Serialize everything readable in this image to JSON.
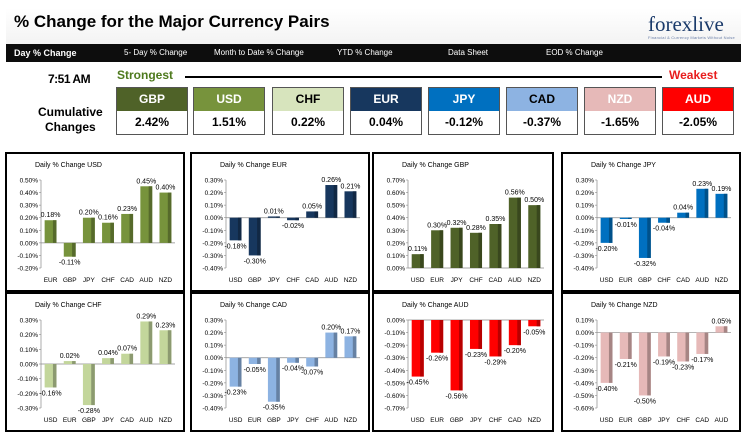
{
  "header": {
    "title": "% Change for the Major Currency Pairs",
    "logo_text": "forexlive",
    "logo_tagline": "Financial & Currency Markets Without Noise"
  },
  "nav": {
    "tabs": [
      {
        "label": "Day % Change",
        "active": true
      },
      {
        "label": "5- Day % Change",
        "active": false
      },
      {
        "label": "Month to Date % Change",
        "active": false
      },
      {
        "label": "YTD % Change",
        "active": false
      },
      {
        "label": "Data Sheet",
        "active": false
      },
      {
        "label": "EOD % Change",
        "active": false
      }
    ]
  },
  "summary": {
    "time": "7:51 AM",
    "strongest_label": "Strongest",
    "weakest_label": "Weakest",
    "cumulative_label_1": "Cumulative",
    "cumulative_label_2": "Changes",
    "currencies": [
      {
        "code": "GBP",
        "value": "2.42%",
        "color": "#4f6228",
        "text_color": "#ffffff"
      },
      {
        "code": "USD",
        "value": "1.51%",
        "color": "#77933c",
        "text_color": "#ffffff"
      },
      {
        "code": "CHF",
        "value": "0.22%",
        "color": "#d7e4bd",
        "text_color": "#000000"
      },
      {
        "code": "EUR",
        "value": "0.04%",
        "color": "#17375e",
        "text_color": "#ffffff"
      },
      {
        "code": "JPY",
        "value": "-0.12%",
        "color": "#0070c0",
        "text_color": "#ffffff"
      },
      {
        "code": "CAD",
        "value": "-0.37%",
        "color": "#8db3e2",
        "text_color": "#000000"
      },
      {
        "code": "NZD",
        "value": "-1.65%",
        "color": "#e6b9b8",
        "text_color": "#ffffff"
      },
      {
        "code": "AUD",
        "value": "-2.05%",
        "color": "#ff0000",
        "text_color": "#ffffff"
      }
    ]
  },
  "chart_data": [
    {
      "type": "bar",
      "title": "Daily % Change USD",
      "color": "#77933c",
      "categories": [
        "EUR",
        "GBP",
        "JPY",
        "CHF",
        "CAD",
        "AUD",
        "NZD"
      ],
      "values": [
        0.18,
        -0.11,
        0.2,
        0.16,
        0.23,
        0.45,
        0.4
      ],
      "labels": [
        "0.18%",
        "-0.11%",
        "0.20%",
        "0.16%",
        "0.23%",
        "0.45%",
        "0.40%"
      ],
      "ylim": [
        -0.2,
        0.5
      ],
      "ytick_labels": [
        "0.50%",
        "0.40%",
        "0.30%",
        "0.20%",
        "0.10%",
        "0.00%",
        "-0.10%",
        "-0.20%"
      ]
    },
    {
      "type": "bar",
      "title": "Daily % Change EUR",
      "color": "#17375e",
      "categories": [
        "USD",
        "GBP",
        "JPY",
        "CHF",
        "CAD",
        "AUD",
        "NZD"
      ],
      "values": [
        -0.18,
        -0.3,
        0.01,
        -0.02,
        0.05,
        0.26,
        0.21
      ],
      "labels": [
        "-0.18%",
        "-0.30%",
        "0.01%",
        "-0.02%",
        "0.05%",
        "0.26%",
        "0.21%"
      ],
      "ylim": [
        -0.4,
        0.3
      ],
      "ytick_labels": [
        "0.30%",
        "0.20%",
        "0.10%",
        "0.00%",
        "-0.10%",
        "-0.20%",
        "-0.30%",
        "-0.40%"
      ]
    },
    {
      "type": "bar",
      "title": "Daily % Change GBP",
      "color": "#4f6228",
      "categories": [
        "USD",
        "EUR",
        "JPY",
        "CHF",
        "CAD",
        "AUD",
        "NZD"
      ],
      "values": [
        0.11,
        0.3,
        0.32,
        0.28,
        0.35,
        0.56,
        0.5
      ],
      "labels": [
        "0.11%",
        "0.30%",
        "0.32%",
        "0.28%",
        "0.35%",
        "0.56%",
        "0.50%"
      ],
      "ylim": [
        0.0,
        0.7
      ],
      "ytick_labels": [
        "0.70%",
        "0.60%",
        "0.50%",
        "0.40%",
        "0.30%",
        "0.20%",
        "0.10%",
        "0.00%"
      ]
    },
    {
      "type": "bar",
      "title": "Daily % Change JPY",
      "color": "#0070c0",
      "categories": [
        "USD",
        "EUR",
        "GBP",
        "CHF",
        "CAD",
        "AUD",
        "NZD"
      ],
      "values": [
        -0.2,
        -0.01,
        -0.32,
        -0.04,
        0.04,
        0.23,
        0.19
      ],
      "labels": [
        "-0.20%",
        "-0.01%",
        "-0.32%",
        "-0.04%",
        "0.04%",
        "0.23%",
        "0.19%"
      ],
      "ylim": [
        -0.4,
        0.3
      ],
      "ytick_labels": [
        "0.30%",
        "0.20%",
        "0.10%",
        "0.00%",
        "-0.10%",
        "-0.20%",
        "-0.30%",
        "-0.40%"
      ]
    },
    {
      "type": "bar",
      "title": "Daily % Change CHF",
      "color": "#c3d69b",
      "categories": [
        "USD",
        "EUR",
        "GBP",
        "JPY",
        "CAD",
        "AUD",
        "NZD"
      ],
      "values": [
        -0.16,
        0.02,
        -0.28,
        0.04,
        0.07,
        0.29,
        0.23
      ],
      "labels": [
        "-0.16%",
        "0.02%",
        "-0.28%",
        "0.04%",
        "0.07%",
        "0.29%",
        "0.23%"
      ],
      "ylim": [
        -0.3,
        0.3
      ],
      "ytick_labels": [
        "0.30%",
        "0.20%",
        "0.10%",
        "0.00%",
        "-0.10%",
        "-0.20%",
        "-0.30%"
      ]
    },
    {
      "type": "bar",
      "title": "Daily % Change CAD",
      "color": "#8db3e2",
      "categories": [
        "USD",
        "EUR",
        "GBP",
        "JPY",
        "CHF",
        "AUD",
        "NZD"
      ],
      "values": [
        -0.23,
        -0.05,
        -0.35,
        -0.04,
        -0.07,
        0.2,
        0.17
      ],
      "labels": [
        "-0.23%",
        "-0.05%",
        "-0.35%",
        "-0.04%",
        "-0.07%",
        "0.20%",
        "0.17%"
      ],
      "ylim": [
        -0.4,
        0.3
      ],
      "ytick_labels": [
        "0.30%",
        "0.20%",
        "0.10%",
        "0.00%",
        "-0.10%",
        "-0.20%",
        "-0.30%",
        "-0.40%"
      ]
    },
    {
      "type": "bar",
      "title": "Daily % Change AUD",
      "color": "#ff0000",
      "categories": [
        "USD",
        "EUR",
        "GBP",
        "JPY",
        "CHF",
        "CAD",
        "NZD"
      ],
      "values": [
        -0.45,
        -0.26,
        -0.56,
        -0.23,
        -0.29,
        -0.2,
        -0.05
      ],
      "labels": [
        "-0.45%",
        "-0.26%",
        "-0.56%",
        "-0.23%",
        "-0.29%",
        "-0.20%",
        "-0.05%"
      ],
      "ylim": [
        -0.7,
        0.0
      ],
      "ytick_labels": [
        "0.00%",
        "-0.10%",
        "-0.20%",
        "-0.30%",
        "-0.40%",
        "-0.50%",
        "-0.60%",
        "-0.70%"
      ]
    },
    {
      "type": "bar",
      "title": "Daily % Change NZD",
      "color": "#e6b9b8",
      "categories": [
        "USD",
        "EUR",
        "GBP",
        "JPY",
        "CHF",
        "CAD",
        "AUD"
      ],
      "values": [
        -0.4,
        -0.21,
        -0.5,
        -0.19,
        -0.23,
        -0.17,
        0.05
      ],
      "labels": [
        "-0.40%",
        "-0.21%",
        "-0.50%",
        "-0.19%",
        "-0.23%",
        "-0.17%",
        "0.05%"
      ],
      "ylim": [
        -0.6,
        0.1
      ],
      "ytick_labels": [
        "0.10%",
        "0.00%",
        "-0.10%",
        "-0.20%",
        "-0.30%",
        "-0.40%",
        "-0.50%",
        "-0.60%"
      ]
    }
  ]
}
